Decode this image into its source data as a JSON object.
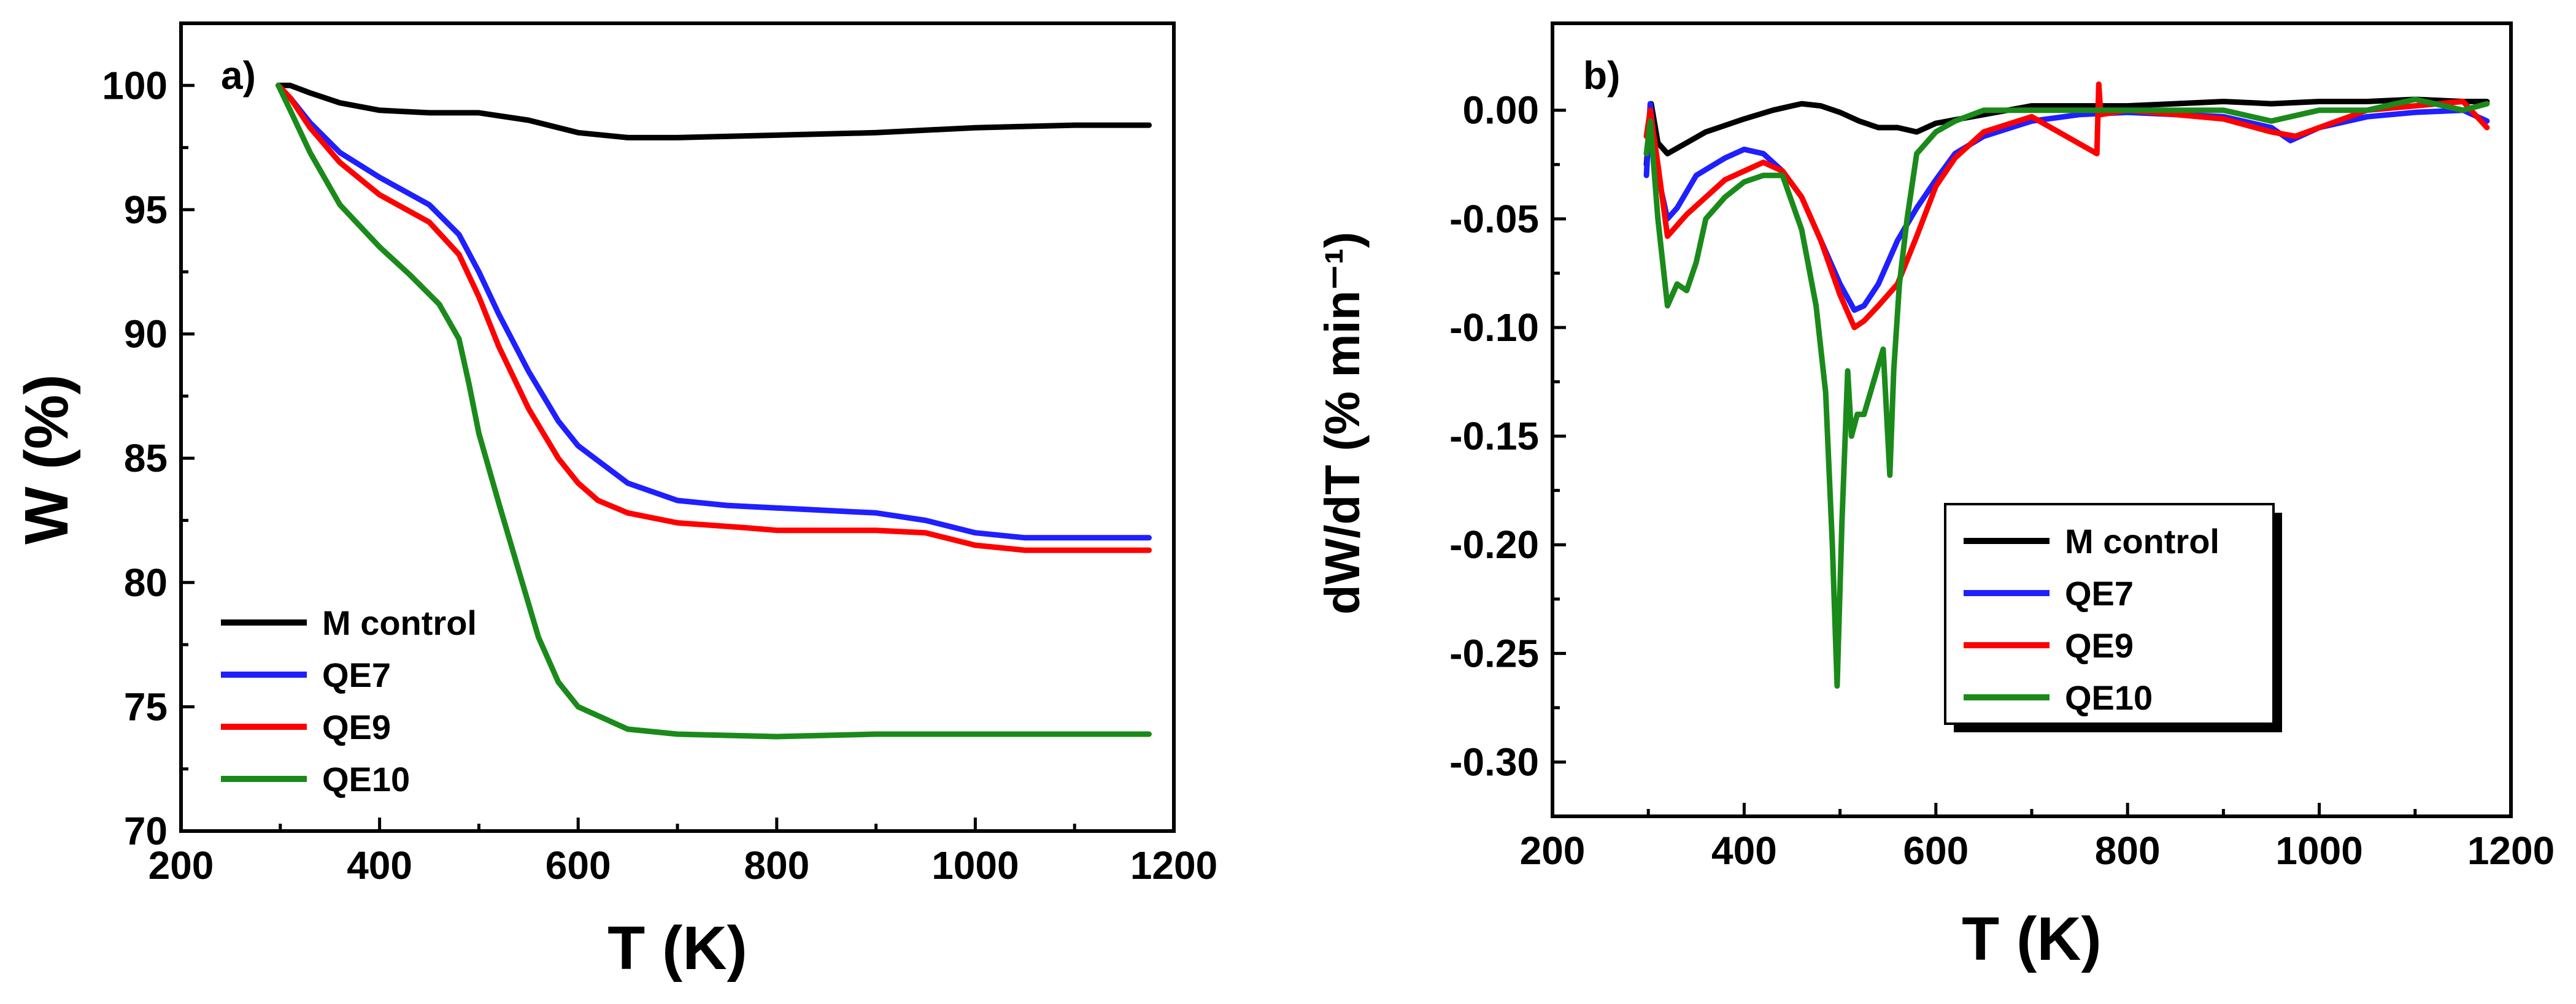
{
  "chart_data": [
    {
      "panel": "a)",
      "type": "line",
      "xlabel": "T (K)",
      "ylabel": "W (%)",
      "xlim": [
        200,
        1200
      ],
      "ylim": [
        70,
        102.5
      ],
      "xticks": [
        200,
        400,
        600,
        800,
        1000,
        1200
      ],
      "yticks": [
        70,
        75,
        80,
        85,
        90,
        95,
        100
      ],
      "legend_position": "lower-left",
      "series": [
        {
          "name": "M control",
          "color": "#000000",
          "x": [
            298,
            310,
            330,
            360,
            400,
            450,
            500,
            550,
            600,
            650,
            700,
            800,
            900,
            1000,
            1100,
            1175
          ],
          "y": [
            100,
            100,
            99.7,
            99.3,
            99.0,
            98.9,
            98.9,
            98.6,
            98.1,
            97.9,
            97.9,
            98.0,
            98.1,
            98.3,
            98.4,
            98.4
          ]
        },
        {
          "name": "QE7",
          "color": "#1f1fff",
          "x": [
            298,
            310,
            330,
            360,
            400,
            450,
            480,
            500,
            520,
            550,
            580,
            600,
            650,
            700,
            750,
            800,
            900,
            950,
            1000,
            1050,
            1100,
            1175
          ],
          "y": [
            100,
            99.5,
            98.5,
            97.3,
            96.3,
            95.2,
            94.0,
            92.5,
            90.8,
            88.5,
            86.5,
            85.5,
            84.0,
            83.3,
            83.1,
            83.0,
            82.8,
            82.5,
            82.0,
            81.8,
            81.8,
            81.8
          ]
        },
        {
          "name": "QE9",
          "color": "#ff0000",
          "x": [
            298,
            310,
            330,
            360,
            400,
            450,
            480,
            500,
            520,
            550,
            580,
            600,
            620,
            650,
            700,
            770,
            800,
            900,
            950,
            1000,
            1050,
            1100,
            1175
          ],
          "y": [
            100,
            99.5,
            98.3,
            96.9,
            95.6,
            94.5,
            93.2,
            91.5,
            89.5,
            87.0,
            85.0,
            84.0,
            83.3,
            82.8,
            82.4,
            82.2,
            82.1,
            82.1,
            82.0,
            81.5,
            81.3,
            81.3,
            81.3
          ]
        },
        {
          "name": "QE10",
          "color": "#1a8a1a",
          "x": [
            298,
            310,
            330,
            360,
            400,
            430,
            460,
            480,
            490,
            500,
            520,
            540,
            560,
            580,
            600,
            650,
            700,
            800,
            900,
            1000,
            1100,
            1175
          ],
          "y": [
            100,
            99.0,
            97.3,
            95.2,
            93.5,
            92.4,
            91.2,
            89.8,
            88.0,
            86.0,
            83.2,
            80.5,
            77.8,
            76.0,
            75.0,
            74.1,
            73.9,
            73.8,
            73.9,
            73.9,
            73.9,
            73.9
          ]
        }
      ]
    },
    {
      "panel": "b)",
      "type": "line",
      "xlabel": "T (K)",
      "ylabel": "dW/dT (% min⁻¹)",
      "xlim": [
        200,
        1200
      ],
      "ylim": [
        -0.325,
        0.04
      ],
      "xticks": [
        200,
        400,
        600,
        800,
        1000,
        1200
      ],
      "yticks": [
        -0.3,
        -0.25,
        -0.2,
        -0.15,
        -0.1,
        -0.05,
        0.0
      ],
      "ytick_labels": [
        "-0.30",
        "-0.25",
        "-0.20",
        "-0.15",
        "-0.10",
        "-0.05",
        "0.00"
      ],
      "legend_position": "center-right",
      "series": [
        {
          "name": "M control",
          "color": "#000000",
          "x": [
            298,
            303,
            310,
            320,
            340,
            360,
            380,
            400,
            430,
            460,
            480,
            500,
            520,
            540,
            560,
            580,
            600,
            650,
            700,
            750,
            800,
            850,
            900,
            950,
            1000,
            1050,
            1100,
            1150,
            1175
          ],
          "y": [
            -0.025,
            0.003,
            -0.015,
            -0.02,
            -0.015,
            -0.01,
            -0.007,
            -0.004,
            0.0,
            0.003,
            0.002,
            -0.001,
            -0.005,
            -0.008,
            -0.008,
            -0.01,
            -0.006,
            -0.002,
            0.002,
            0.002,
            0.002,
            0.003,
            0.004,
            0.003,
            0.004,
            0.004,
            0.005,
            0.004,
            0.004
          ]
        },
        {
          "name": "QE7",
          "color": "#1f1fff",
          "x": [
            298,
            302,
            310,
            320,
            330,
            350,
            380,
            400,
            420,
            440,
            460,
            480,
            500,
            515,
            525,
            540,
            560,
            580,
            600,
            620,
            650,
            700,
            750,
            800,
            850,
            900,
            950,
            970,
            1000,
            1050,
            1100,
            1150,
            1175
          ],
          "y": [
            -0.03,
            0.003,
            -0.03,
            -0.05,
            -0.045,
            -0.03,
            -0.022,
            -0.018,
            -0.02,
            -0.028,
            -0.04,
            -0.06,
            -0.08,
            -0.092,
            -0.09,
            -0.08,
            -0.06,
            -0.045,
            -0.032,
            -0.02,
            -0.012,
            -0.005,
            -0.002,
            -0.001,
            -0.002,
            -0.003,
            -0.008,
            -0.014,
            -0.008,
            -0.003,
            -0.001,
            0.0,
            -0.005
          ]
        },
        {
          "name": "QE9",
          "color": "#ff0000",
          "x": [
            298,
            302,
            310,
            320,
            340,
            360,
            380,
            400,
            420,
            440,
            460,
            480,
            500,
            515,
            525,
            540,
            560,
            580,
            600,
            620,
            650,
            700,
            768,
            770,
            772,
            800,
            850,
            900,
            950,
            975,
            1000,
            1050,
            1100,
            1150,
            1175
          ],
          "y": [
            -0.012,
            0.0,
            -0.025,
            -0.058,
            -0.048,
            -0.04,
            -0.032,
            -0.028,
            -0.024,
            -0.028,
            -0.04,
            -0.06,
            -0.085,
            -0.1,
            -0.097,
            -0.09,
            -0.08,
            -0.058,
            -0.035,
            -0.022,
            -0.01,
            -0.003,
            -0.02,
            0.012,
            -0.002,
            0.0,
            -0.002,
            -0.004,
            -0.01,
            -0.012,
            -0.008,
            0.0,
            0.002,
            0.004,
            -0.008
          ]
        },
        {
          "name": "QE10",
          "color": "#1a8a1a",
          "x": [
            298,
            302,
            310,
            320,
            330,
            340,
            350,
            360,
            380,
            400,
            420,
            440,
            460,
            475,
            485,
            492,
            497,
            502,
            508,
            512,
            518,
            525,
            535,
            545,
            552,
            556,
            562,
            570,
            580,
            600,
            620,
            650,
            700,
            800,
            900,
            950,
            1000,
            1050,
            1100,
            1150,
            1175
          ],
          "y": [
            -0.02,
            -0.005,
            -0.05,
            -0.09,
            -0.08,
            -0.083,
            -0.07,
            -0.05,
            -0.04,
            -0.033,
            -0.03,
            -0.03,
            -0.055,
            -0.09,
            -0.13,
            -0.2,
            -0.265,
            -0.19,
            -0.12,
            -0.15,
            -0.14,
            -0.14,
            -0.125,
            -0.11,
            -0.168,
            -0.12,
            -0.08,
            -0.05,
            -0.02,
            -0.01,
            -0.005,
            0.0,
            0.0,
            0.0,
            0.0,
            -0.005,
            0.0,
            0.0,
            0.005,
            0.0,
            0.003
          ]
        }
      ]
    }
  ]
}
